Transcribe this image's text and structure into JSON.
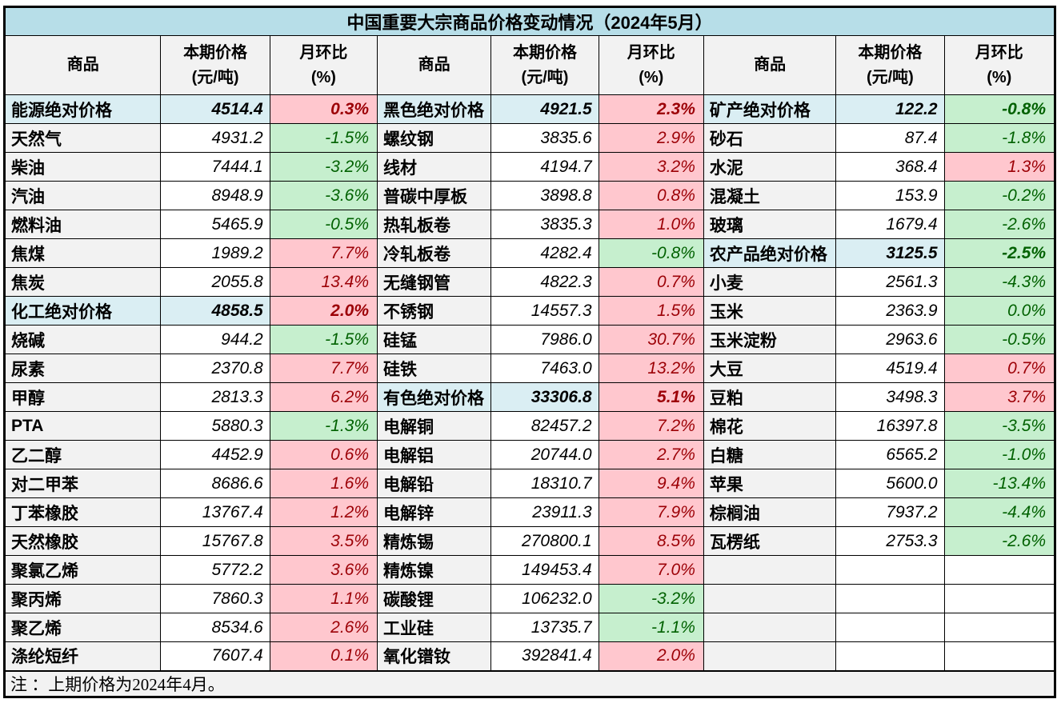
{
  "title": "中国重要大宗商品价格变动情况（2024年5月）",
  "note": "注 ：上期价格为2024年4月。",
  "columns": {
    "commodity": "商品",
    "price": "本期价格",
    "price_unit": "(元/吨)",
    "change": "月环比",
    "change_unit": "(%)"
  },
  "colors": {
    "title_bg": "#b7dee8",
    "summary_bg": "#daeef3",
    "label_bg": "#f2f2f2",
    "increase_bg": "#ffc7ce",
    "increase_text": "#9c0006",
    "decrease_bg": "#c6efce",
    "decrease_text": "#006100"
  },
  "chart_data": {
    "type": "table",
    "column_headers": [
      "商品",
      "本期价格(元/吨)",
      "月环比(%)"
    ],
    "groups": [
      {
        "rows": [
          {
            "name": "能源绝对价格",
            "price": "4514.4",
            "change": "0.3%",
            "trend": "up",
            "kind": "summary"
          },
          {
            "name": "天然气",
            "price": "4931.2",
            "change": "-1.5%",
            "trend": "down",
            "kind": "item"
          },
          {
            "name": "柴油",
            "price": "7444.1",
            "change": "-3.2%",
            "trend": "down",
            "kind": "item"
          },
          {
            "name": "汽油",
            "price": "8948.9",
            "change": "-3.6%",
            "trend": "down",
            "kind": "item"
          },
          {
            "name": "燃料油",
            "price": "5465.9",
            "change": "-0.5%",
            "trend": "down",
            "kind": "item"
          },
          {
            "name": "焦煤",
            "price": "1989.2",
            "change": "7.7%",
            "trend": "up",
            "kind": "item"
          },
          {
            "name": "焦炭",
            "price": "2055.8",
            "change": "13.4%",
            "trend": "up",
            "kind": "item"
          },
          {
            "name": "化工绝对价格",
            "price": "4858.5",
            "change": "2.0%",
            "trend": "up",
            "kind": "summary"
          },
          {
            "name": "烧碱",
            "price": "944.2",
            "change": "-1.5%",
            "trend": "down",
            "kind": "item"
          },
          {
            "name": "尿素",
            "price": "2370.8",
            "change": "7.7%",
            "trend": "up",
            "kind": "item"
          },
          {
            "name": "甲醇",
            "price": "2813.3",
            "change": "6.2%",
            "trend": "up",
            "kind": "item"
          },
          {
            "name": "PTA",
            "price": "5880.3",
            "change": "-1.3%",
            "trend": "down",
            "kind": "item"
          },
          {
            "name": "乙二醇",
            "price": "4452.9",
            "change": "0.6%",
            "trend": "up",
            "kind": "item"
          },
          {
            "name": "对二甲苯",
            "price": "8686.6",
            "change": "1.6%",
            "trend": "up",
            "kind": "item"
          },
          {
            "name": "丁苯橡胶",
            "price": "13767.4",
            "change": "1.2%",
            "trend": "up",
            "kind": "item"
          },
          {
            "name": "天然橡胶",
            "price": "15767.8",
            "change": "3.5%",
            "trend": "up",
            "kind": "item"
          },
          {
            "name": "聚氯乙烯",
            "price": "5772.2",
            "change": "3.6%",
            "trend": "up",
            "kind": "item"
          },
          {
            "name": "聚丙烯",
            "price": "7860.3",
            "change": "1.1%",
            "trend": "up",
            "kind": "item"
          },
          {
            "name": "聚乙烯",
            "price": "8534.6",
            "change": "2.6%",
            "trend": "up",
            "kind": "item"
          },
          {
            "name": "涤纶短纤",
            "price": "7607.4",
            "change": "0.1%",
            "trend": "up",
            "kind": "item"
          }
        ]
      },
      {
        "rows": [
          {
            "name": "黑色绝对价格",
            "price": "4921.5",
            "change": "2.3%",
            "trend": "up",
            "kind": "summary"
          },
          {
            "name": "螺纹钢",
            "price": "3835.6",
            "change": "2.9%",
            "trend": "up",
            "kind": "item"
          },
          {
            "name": "线材",
            "price": "4194.7",
            "change": "3.2%",
            "trend": "up",
            "kind": "item"
          },
          {
            "name": "普碳中厚板",
            "price": "3898.8",
            "change": "0.8%",
            "trend": "up",
            "kind": "item"
          },
          {
            "name": "热轧板卷",
            "price": "3835.3",
            "change": "1.0%",
            "trend": "up",
            "kind": "item"
          },
          {
            "name": "冷轧板卷",
            "price": "4282.4",
            "change": "-0.8%",
            "trend": "down",
            "kind": "item"
          },
          {
            "name": "无缝钢管",
            "price": "4822.3",
            "change": "0.7%",
            "trend": "up",
            "kind": "item"
          },
          {
            "name": "不锈钢",
            "price": "14557.3",
            "change": "1.5%",
            "trend": "up",
            "kind": "item"
          },
          {
            "name": "硅锰",
            "price": "7986.0",
            "change": "30.7%",
            "trend": "up",
            "kind": "item"
          },
          {
            "name": "硅铁",
            "price": "7463.0",
            "change": "13.2%",
            "trend": "up",
            "kind": "item"
          },
          {
            "name": "有色绝对价格",
            "price": "33306.8",
            "change": "5.1%",
            "trend": "up",
            "kind": "summary"
          },
          {
            "name": "电解铜",
            "price": "82457.2",
            "change": "7.2%",
            "trend": "up",
            "kind": "item"
          },
          {
            "name": "电解铝",
            "price": "20744.0",
            "change": "2.7%",
            "trend": "up",
            "kind": "item"
          },
          {
            "name": "电解铅",
            "price": "18310.7",
            "change": "9.4%",
            "trend": "up",
            "kind": "item"
          },
          {
            "name": "电解锌",
            "price": "23911.3",
            "change": "7.9%",
            "trend": "up",
            "kind": "item"
          },
          {
            "name": "精炼锡",
            "price": "270800.1",
            "change": "8.5%",
            "trend": "up",
            "kind": "item"
          },
          {
            "name": "精炼镍",
            "price": "149453.4",
            "change": "7.0%",
            "trend": "up",
            "kind": "item"
          },
          {
            "name": "碳酸锂",
            "price": "106232.0",
            "change": "-3.2%",
            "trend": "down",
            "kind": "item"
          },
          {
            "name": "工业硅",
            "price": "13735.7",
            "change": "-1.1%",
            "trend": "down",
            "kind": "item"
          },
          {
            "name": "氧化镨钕",
            "price": "392841.4",
            "change": "2.0%",
            "trend": "up",
            "kind": "item"
          }
        ]
      },
      {
        "rows": [
          {
            "name": "矿产绝对价格",
            "price": "122.2",
            "change": "-0.8%",
            "trend": "down",
            "kind": "summary"
          },
          {
            "name": "砂石",
            "price": "87.4",
            "change": "-1.8%",
            "trend": "down",
            "kind": "item"
          },
          {
            "name": "水泥",
            "price": "368.4",
            "change": "1.3%",
            "trend": "up",
            "kind": "item"
          },
          {
            "name": "混凝土",
            "price": "153.9",
            "change": "-0.2%",
            "trend": "down",
            "kind": "item"
          },
          {
            "name": "玻璃",
            "price": "1679.4",
            "change": "-2.6%",
            "trend": "down",
            "kind": "item"
          },
          {
            "name": "农产品绝对价格",
            "price": "3125.5",
            "change": "-2.5%",
            "trend": "down",
            "kind": "summary"
          },
          {
            "name": "小麦",
            "price": "2561.3",
            "change": "-4.3%",
            "trend": "down",
            "kind": "item"
          },
          {
            "name": "玉米",
            "price": "2363.9",
            "change": "0.0%",
            "trend": "down",
            "kind": "item"
          },
          {
            "name": "玉米淀粉",
            "price": "2963.6",
            "change": "-0.5%",
            "trend": "down",
            "kind": "item"
          },
          {
            "name": "大豆",
            "price": "4519.4",
            "change": "0.7%",
            "trend": "up",
            "kind": "item"
          },
          {
            "name": "豆粕",
            "price": "3498.3",
            "change": "3.7%",
            "trend": "up",
            "kind": "item"
          },
          {
            "name": "棉花",
            "price": "16397.8",
            "change": "-3.5%",
            "trend": "down",
            "kind": "item"
          },
          {
            "name": "白糖",
            "price": "6565.2",
            "change": "-1.0%",
            "trend": "down",
            "kind": "item"
          },
          {
            "name": "苹果",
            "price": "5600.0",
            "change": "-13.4%",
            "trend": "down",
            "kind": "item"
          },
          {
            "name": "棕榈油",
            "price": "7937.2",
            "change": "-4.4%",
            "trend": "down",
            "kind": "item"
          },
          {
            "name": "瓦楞纸",
            "price": "2753.3",
            "change": "-2.6%",
            "trend": "down",
            "kind": "item"
          },
          {
            "name": "",
            "price": "",
            "change": "",
            "trend": null,
            "kind": "empty"
          },
          {
            "name": "",
            "price": "",
            "change": "",
            "trend": null,
            "kind": "empty"
          },
          {
            "name": "",
            "price": "",
            "change": "",
            "trend": null,
            "kind": "empty"
          },
          {
            "name": "",
            "price": "",
            "change": "",
            "trend": null,
            "kind": "empty"
          }
        ]
      }
    ]
  }
}
